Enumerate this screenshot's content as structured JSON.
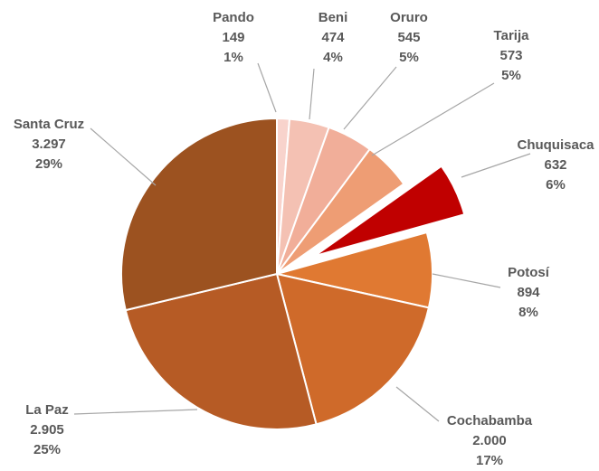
{
  "chart_data": {
    "type": "pie",
    "title": "",
    "series": [
      {
        "values": [
          {
            "label": "Pando",
            "value": 149,
            "percent": "1%",
            "value_label": "149",
            "color": "#f8d3cc"
          },
          {
            "label": "Beni",
            "value": 474,
            "percent": "4%",
            "value_label": "474",
            "color": "#f4c1b3"
          },
          {
            "label": "Oruro",
            "value": 545,
            "percent": "5%",
            "value_label": "545",
            "color": "#f1ae99"
          },
          {
            "label": "Tarija",
            "value": 573,
            "percent": "5%",
            "value_label": "573",
            "color": "#ee9d74"
          },
          {
            "label": "Chuquisaca",
            "value": 632,
            "percent": "6%",
            "value_label": "632",
            "color": "#c00000",
            "exploded": true
          },
          {
            "label": "Potosí",
            "value": 894,
            "percent": "8%",
            "value_label": "894",
            "color": "#e07932"
          },
          {
            "label": "Cochabamba",
            "value": 2000,
            "percent": "17%",
            "value_label": "2.000",
            "color": "#cf6a2a"
          },
          {
            "label": "La Paz",
            "value": 2905,
            "percent": "25%",
            "value_label": "2.905",
            "color": "#b65b25"
          },
          {
            "label": "Santa Cruz",
            "value": 3297,
            "percent": "29%",
            "value_label": "3.297",
            "color": "#9c5220"
          }
        ]
      }
    ],
    "legend": "none",
    "start_angle_deg": 0,
    "direction": "clockwise"
  }
}
